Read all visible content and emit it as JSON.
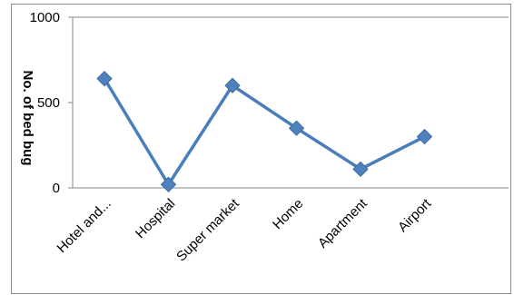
{
  "chart_data": {
    "type": "line",
    "title": "",
    "xlabel": "",
    "ylabel": "No. of bed bug",
    "categories": [
      "Hotel and...",
      "Hospital",
      "Super market",
      "Home",
      "Apartment",
      "Airport"
    ],
    "series": [
      {
        "values": [
          640,
          20,
          600,
          350,
          110,
          300
        ]
      }
    ],
    "ylim": [
      0,
      1000
    ],
    "yticks": [
      0,
      500,
      1000
    ],
    "grid": false,
    "legend": "none",
    "colors": {
      "line": "#4a7ebb",
      "marker": "#4f81bd",
      "axis": "#868686",
      "frame": "#8c8c8c"
    }
  }
}
